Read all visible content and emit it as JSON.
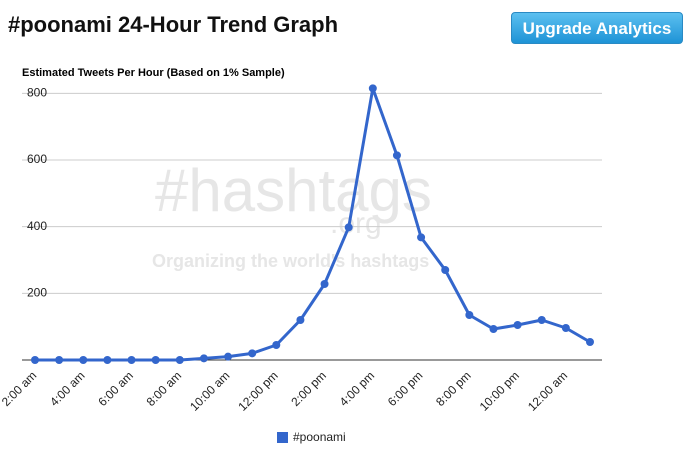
{
  "page": {
    "title": "#poonami 24-Hour Trend Graph",
    "button": "Upgrade Analytics",
    "watermark": {
      "logo": "#hashtags",
      "domain": ".org",
      "tagline": "Organizing the world's hashtags"
    }
  },
  "chart_data": {
    "type": "line",
    "title": "Estimated Tweets Per Hour (Based on 1% Sample)",
    "categories": [
      "2:00 am",
      null,
      "4:00 am",
      null,
      "6:00 am",
      null,
      "8:00 am",
      null,
      "10:00 am",
      null,
      "12:00 pm",
      null,
      "2:00 pm",
      null,
      "4:00 pm",
      null,
      "6:00 pm",
      null,
      "8:00 pm",
      null,
      "10:00 pm",
      null,
      "12:00 am",
      null
    ],
    "series": [
      {
        "name": "#poonami",
        "color": "#3366cc",
        "values": [
          0,
          0,
          0,
          0,
          0,
          0,
          0,
          5,
          10,
          20,
          45,
          120,
          228,
          398,
          815,
          614,
          368,
          270,
          135,
          93,
          105,
          120,
          96,
          54
        ]
      }
    ],
    "ylim": [
      0,
      825
    ],
    "yticks": [
      200,
      400,
      600,
      800
    ],
    "grid": true,
    "legend": "bottom"
  }
}
